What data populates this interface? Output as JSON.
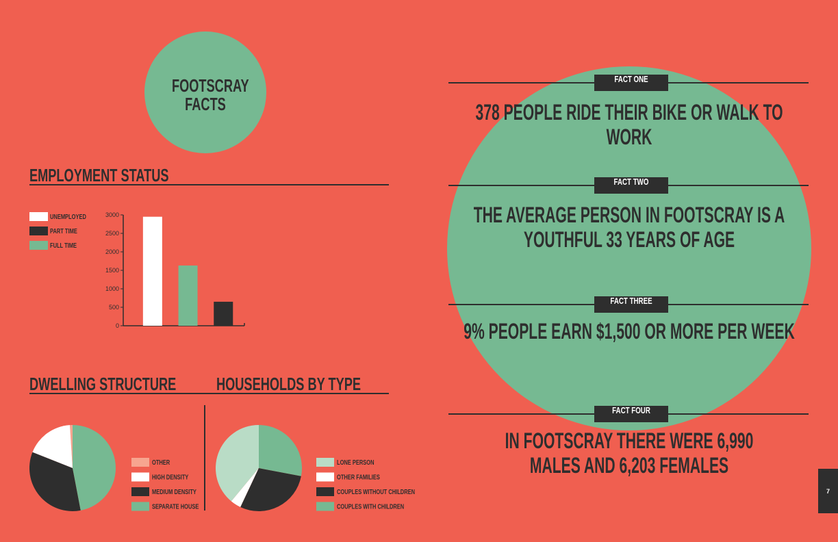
{
  "header": {
    "title": "FOOTSCRAY FACTS"
  },
  "chart_data": [
    {
      "type": "bar",
      "title": "EMPLOYMENT STATUS",
      "categories": [
        null,
        null,
        null
      ],
      "series": [
        {
          "name": "UNEMPLOYED",
          "color": "#ffffff",
          "values": [
            2950,
            null,
            null
          ]
        },
        {
          "name": "PART TIME",
          "color": "#2e2e2e",
          "values": [
            null,
            null,
            650
          ]
        },
        {
          "name": "FULL TIME",
          "color": "#76b992",
          "values": [
            null,
            1630,
            null
          ]
        }
      ],
      "ylim": [
        0,
        3000
      ],
      "yticks": [
        0,
        500,
        1000,
        1500,
        2000,
        2500,
        3000
      ]
    },
    {
      "type": "pie",
      "title": "DWELLING STRUCTURE",
      "categories": [
        "OTHER",
        "HIGH DENSITY",
        "MEDIUM DENSITY",
        "SEPARATE HOUSE"
      ],
      "values": [
        1,
        18,
        34,
        47
      ],
      "colors": [
        "#f7a58f",
        "#ffffff",
        "#2e2e2e",
        "#76b992"
      ]
    },
    {
      "type": "pie",
      "title": "HOUSEHOLDS BY TYPE",
      "categories": [
        "LONE PERSON",
        "OTHER FAMILIES",
        "COUPLES WITHOUT CHILDREN",
        "COUPLES WITH CHILDREN"
      ],
      "values": [
        39,
        4,
        29,
        28
      ],
      "colors": [
        "#b9dcc6",
        "#ffffff",
        "#2e2e2e",
        "#76b992"
      ]
    }
  ],
  "facts": [
    {
      "label": "FACT ONE",
      "text": "378 PEOPLE RIDE THEIR BIKE OR WALK TO WORK"
    },
    {
      "label": "FACT TWO",
      "text": "THE AVERAGE PERSON IN FOOTSCRAY IS A YOUTHFUL 33 YEARS OF AGE"
    },
    {
      "label": "FACT THREE",
      "text": "9% PEOPLE EARN $1,500 OR MORE PER WEEK"
    },
    {
      "label": "FACT FOUR",
      "text": "IN FOOTSCRAY THERE WERE 6,990 MALES AND 6,203 FEMALES"
    }
  ],
  "page_number": "7"
}
